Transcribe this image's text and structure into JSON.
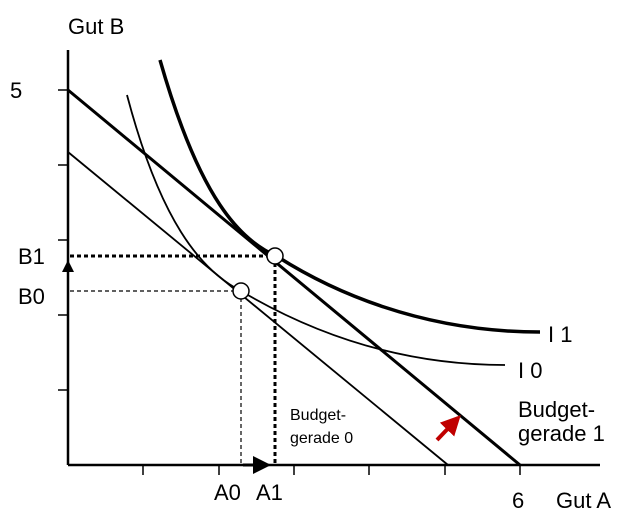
{
  "axes": {
    "y_label": "Gut B",
    "x_label": "Gut A",
    "y_end": "5",
    "x_end": "6"
  },
  "points": {
    "b1": "B1",
    "b0": "B0",
    "a0": "A0",
    "a1": "A1"
  },
  "curves": {
    "i1": "I 1",
    "i0": "I 0"
  },
  "budget_lines": {
    "line0": [
      "Budget-",
      "gerade 0"
    ],
    "line1": [
      "Budget-",
      "gerade 1"
    ]
  }
}
